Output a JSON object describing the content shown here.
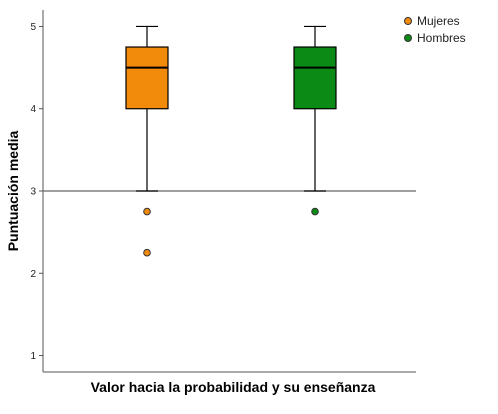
{
  "chart_data": {
    "type": "boxplot",
    "xlabel": "Valor hacia la probabilidad y su enseñanza",
    "ylabel": "Puntuación media",
    "ylim": [
      0.8,
      5.2
    ],
    "yticks": [
      "1",
      "2",
      "3",
      "4",
      "5"
    ],
    "reference_line": 3,
    "legend": {
      "placement": "top-right"
    },
    "series": [
      {
        "name": "Mujeres",
        "color": "#f28a0b",
        "min": 3,
        "q1": 4,
        "median": 4.5,
        "q3": 4.75,
        "max": 5,
        "outliers": [
          2.75,
          2.25
        ]
      },
      {
        "name": "Hombres",
        "color": "#0b8a16",
        "min": 3,
        "q1": 4,
        "median": 4.5,
        "q3": 4.75,
        "max": 5,
        "outliers": [
          2.75
        ]
      }
    ]
  }
}
